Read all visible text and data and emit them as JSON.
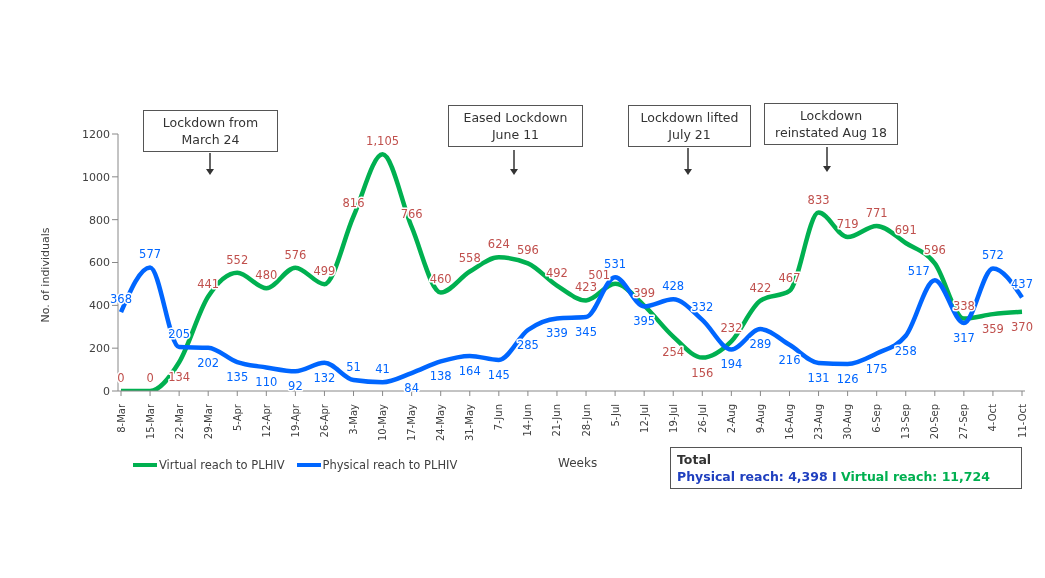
{
  "chart_data": {
    "type": "line",
    "xlabel": "Weeks",
    "ylabel": "No. of individuals",
    "categories": [
      "8-Mar",
      "15-Mar",
      "22-Mar",
      "29-Mar",
      "5-Apr",
      "12-Apr",
      "19-Apr",
      "26-Apr",
      "3-May",
      "10-May",
      "17-May",
      "24-May",
      "31-May",
      "7-Jun",
      "14-Jun",
      "21-Jun",
      "28-Jun",
      "5-Jul",
      "12-Jul",
      "19-Jul",
      "26-Jul",
      "2-Aug",
      "9-Aug",
      "16-Aug",
      "23-Aug",
      "30-Aug",
      "6-Sep",
      "13-Sep",
      "20-Sep",
      "27-Sep",
      "4-Oct",
      "11-Oct"
    ],
    "series": [
      {
        "name": "Virtual reach to PLHIV",
        "color": "#00b050",
        "values": [
          0,
          0,
          134,
          441,
          552,
          480,
          576,
          499,
          816,
          1105,
          766,
          460,
          558,
          624,
          596,
          492,
          423,
          501,
          399,
          254,
          156,
          232,
          422,
          467,
          833,
          719,
          771,
          691,
          596,
          338,
          359,
          370
        ],
        "value_labels": [
          "0",
          "0",
          "134",
          "441",
          "552",
          "480",
          "576",
          "499",
          "816",
          "1,105",
          "766",
          "460",
          "558",
          "624",
          "596",
          "492",
          "423",
          "501",
          "399",
          "254",
          "156",
          "232",
          "422",
          "467",
          "833",
          "719",
          "771",
          "691",
          "596",
          "338",
          "359",
          "370"
        ]
      },
      {
        "name": "Physical reach to PLHIV",
        "color": "#0066ff",
        "values": [
          368,
          577,
          205,
          202,
          135,
          110,
          92,
          132,
          51,
          41,
          84,
          138,
          164,
          145,
          285,
          339,
          345,
          531,
          395,
          428,
          332,
          194,
          289,
          216,
          131,
          126,
          175,
          258,
          517,
          317,
          572,
          437
        ],
        "value_labels": [
          "368",
          "577",
          "205",
          "202",
          "135",
          "110",
          "92",
          "132",
          "51",
          "41",
          "84",
          "138",
          "164",
          "145",
          "285",
          "339",
          "345",
          "531",
          "395",
          "428",
          "332",
          "194",
          "289",
          "216",
          "131",
          "126",
          "175",
          "258",
          "517",
          "317",
          "572",
          "437"
        ]
      }
    ],
    "ylim": [
      0,
      1200
    ],
    "yticks": [
      0,
      200,
      400,
      600,
      800,
      1000,
      1200
    ],
    "grid": false,
    "legend": "bottom left",
    "marker": "none",
    "line_style": "solid",
    "annotations": [
      "Lockdown from March 24",
      "Eased Lockdown June 11",
      "Lockdown lifted July 21",
      "Lockdown reinstated Aug 18",
      "Total",
      "Physical reach: 4,398 I",
      "Virtual reach: 11,724"
    ]
  }
}
